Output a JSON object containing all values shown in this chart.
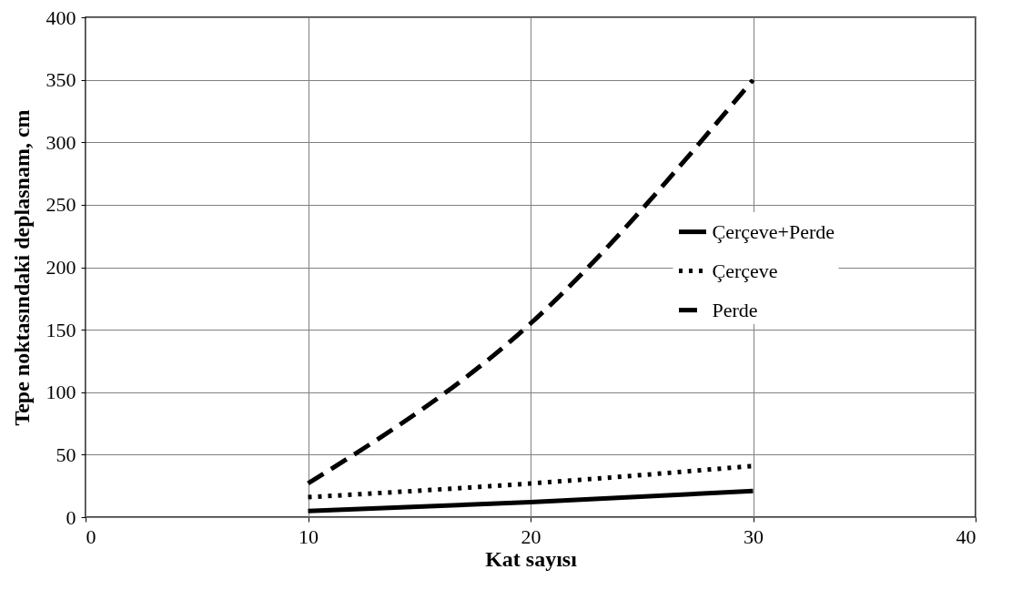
{
  "chart_data": {
    "type": "line",
    "xlabel": "Kat sayısı",
    "ylabel": "Tepe noktasındaki deplasnam, cm",
    "x": [
      10,
      20,
      30
    ],
    "series": [
      {
        "name": "Çerçeve+Perde",
        "color": "#000000",
        "line_style": "solid",
        "values": [
          5,
          12,
          21
        ]
      },
      {
        "name": "Çerçeve",
        "color": "#000000",
        "line_style": "dotted",
        "values": [
          16,
          27,
          41
        ]
      },
      {
        "name": "Perde",
        "color": "#000000",
        "line_style": "dashed",
        "values": [
          27,
          155,
          350
        ]
      }
    ],
    "xlim": [
      0,
      40
    ],
    "xticks": [
      0,
      10,
      20,
      30,
      40
    ],
    "ylim": [
      0,
      400
    ],
    "yticks": [
      0,
      50,
      100,
      150,
      200,
      250,
      300,
      350,
      400
    ],
    "grid": true,
    "legend": "right",
    "marker": "none"
  }
}
